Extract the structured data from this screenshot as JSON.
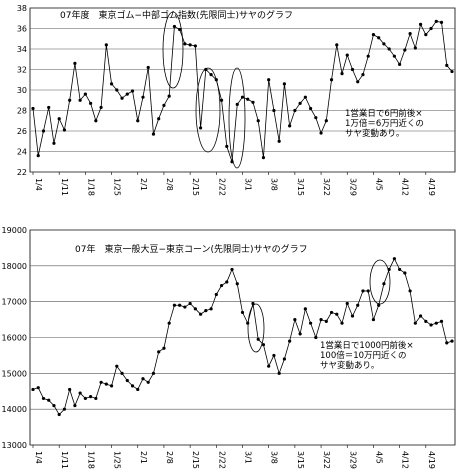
{
  "chart_data": [
    {
      "type": "line",
      "title": "07年度　東京ゴム−中部ゴム指数(先限同士)サヤのグラフ",
      "annotation": [
        "1営業日で6円前後×",
        "1万倍＝6万円近くの",
        "サヤ変動あり。"
      ],
      "categories": [
        "1/4",
        null,
        null,
        null,
        null,
        "1/11",
        null,
        null,
        null,
        null,
        "1/18",
        null,
        null,
        null,
        null,
        "1/25",
        null,
        null,
        null,
        null,
        "2/1",
        null,
        null,
        null,
        null,
        "2/8",
        null,
        null,
        null,
        null,
        "2/15",
        null,
        null,
        null,
        null,
        "2/22",
        null,
        null,
        null,
        null,
        "3/1",
        null,
        null,
        null,
        null,
        "3/8",
        null,
        null,
        null,
        null,
        "3/15",
        null,
        null,
        null,
        null,
        "3/22",
        null,
        null,
        null,
        null,
        "3/29",
        null,
        null,
        null,
        null,
        "4/5",
        null,
        null,
        null,
        null,
        "4/12",
        null,
        null,
        null,
        null,
        "4/19",
        null,
        null,
        null,
        null,
        null
      ],
      "series": [
        {
          "name": "サヤ",
          "color": "#000000",
          "values": [
            28.2,
            23.6,
            26.0,
            28.3,
            24.8,
            27.2,
            26.1,
            29.0,
            32.6,
            29.0,
            29.6,
            28.7,
            27.0,
            28.3,
            34.4,
            30.6,
            30.0,
            29.2,
            29.6,
            29.9,
            27.0,
            29.3,
            32.2,
            25.7,
            27.2,
            28.5,
            29.4,
            36.2,
            35.9,
            34.5,
            34.4,
            34.3,
            26.3,
            32.0,
            31.5,
            31.0,
            29.0,
            24.5,
            23.0,
            28.6,
            29.3,
            29.1,
            28.8,
            27.0,
            23.4,
            31.0,
            28.0,
            25.0,
            30.6,
            26.5,
            28.0,
            28.7,
            29.3,
            28.2,
            27.3,
            25.8,
            27.0,
            31.0,
            34.4,
            31.6,
            33.4,
            32.0,
            30.8,
            31.5,
            33.3,
            35.4,
            35.1,
            34.5,
            34.0,
            33.3,
            32.5,
            33.9,
            35.5,
            34.1,
            36.4,
            35.4,
            36.0,
            36.7,
            36.6,
            32.4,
            31.8
          ]
        }
      ],
      "ylim": [
        22,
        38
      ],
      "yticks": [
        22,
        24,
        26,
        28,
        30,
        32,
        34,
        36,
        38
      ],
      "grid": true
    },
    {
      "type": "line",
      "title": "07年　東京一般大豆−東京コーン(先限同士)サヤのグラフ",
      "annotation": [
        "1営業日で1000円前後×",
        "100倍＝10万円近くの",
        "サヤ変動あり。"
      ],
      "categories": [
        "1/4",
        null,
        null,
        null,
        null,
        "1/11",
        null,
        null,
        null,
        null,
        "1/18",
        null,
        null,
        null,
        null,
        "1/25",
        null,
        null,
        null,
        null,
        "2/1",
        null,
        null,
        null,
        null,
        "2/8",
        null,
        null,
        null,
        null,
        "2/15",
        null,
        null,
        null,
        null,
        "2/22",
        null,
        null,
        null,
        null,
        "3/1",
        null,
        null,
        null,
        null,
        "3/8",
        null,
        null,
        null,
        null,
        "3/15",
        null,
        null,
        null,
        null,
        "3/22",
        null,
        null,
        null,
        null,
        "3/29",
        null,
        null,
        null,
        null,
        "4/5",
        null,
        null,
        null,
        null,
        "4/12",
        null,
        null,
        null,
        null,
        "4/19",
        null,
        null,
        null,
        null,
        null
      ],
      "series": [
        {
          "name": "サヤ",
          "color": "#000000",
          "values": [
            14550,
            14600,
            14300,
            14250,
            14100,
            13850,
            14000,
            14550,
            14100,
            14450,
            14300,
            14350,
            14300,
            14750,
            14700,
            14650,
            15200,
            15000,
            14800,
            14650,
            14550,
            14850,
            14750,
            15000,
            15600,
            15700,
            16400,
            16900,
            16900,
            16850,
            16950,
            16800,
            16650,
            16750,
            16800,
            17200,
            17450,
            17550,
            17900,
            17500,
            16700,
            16400,
            16950,
            15950,
            15800,
            15200,
            15500,
            15000,
            15400,
            15900,
            16500,
            16100,
            16800,
            16400,
            16000,
            16500,
            16450,
            16700,
            16650,
            16400,
            16950,
            16600,
            16900,
            17300,
            17300,
            16500,
            16900,
            17500,
            17900,
            18200,
            17900,
            17800,
            17300,
            16400,
            16600,
            16450,
            16350,
            16400,
            16450,
            15850,
            15900
          ]
        }
      ],
      "ylim": [
        13000,
        19000
      ],
      "yticks": [
        13000,
        14000,
        15000,
        16000,
        17000,
        18000,
        19000
      ],
      "grid": true
    }
  ]
}
